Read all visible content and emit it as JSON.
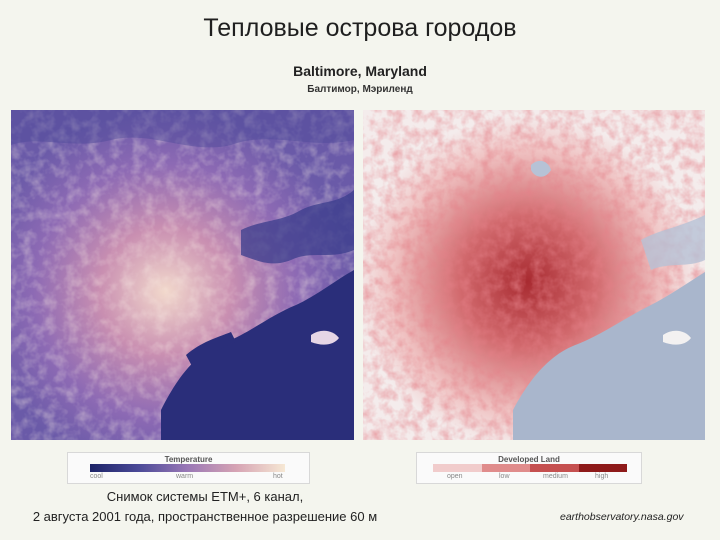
{
  "title": "Тепловые острова городов",
  "subtitle_en": "Baltimore, Maryland",
  "subtitle_ru": "Балтимор, Мэриленд",
  "temperature_legend": {
    "title": "Temperature",
    "labels": [
      "cool",
      "warm",
      "hot"
    ],
    "colors": [
      "#1c2367",
      "#4b4a98",
      "#9a78b6",
      "#d6a3b4",
      "#f6e8d4"
    ]
  },
  "developed_legend": {
    "title": "Developed Land",
    "labels": [
      "open",
      "low",
      "medium",
      "high"
    ],
    "colors": [
      "#f1cccc",
      "#e08c8c",
      "#c55050",
      "#8e1a1a"
    ]
  },
  "caption_line1": "Снимок системы ETM+, 6 канал,",
  "caption_line2": "2 августа 2001 года, пространственное разрешение 60 м",
  "source": "earthobservatory.nasa.gov"
}
